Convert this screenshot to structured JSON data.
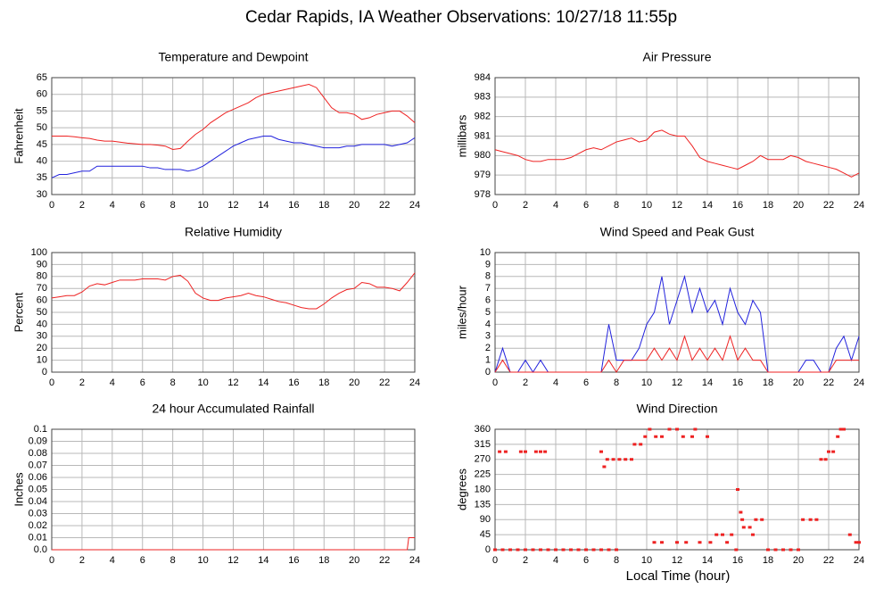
{
  "title": "Cedar Rapids, IA Weather Observations: 10/27/18 11:55p",
  "xlabel": "Local Time (hour)",
  "chart_data": [
    {
      "type": "line",
      "title": "Temperature and Dewpoint",
      "ylabel": "Fahrenheit",
      "grid": true,
      "xlim": [
        0,
        24
      ],
      "xticks": [
        0,
        2,
        4,
        6,
        8,
        10,
        12,
        14,
        16,
        18,
        20,
        22,
        24
      ],
      "ylim": [
        30,
        65
      ],
      "yticks": [
        30,
        35,
        40,
        45,
        50,
        55,
        60,
        65
      ],
      "x": [
        0,
        0.5,
        1,
        1.5,
        2,
        2.5,
        3,
        3.5,
        4,
        4.5,
        5,
        5.5,
        6,
        6.5,
        7,
        7.5,
        8,
        8.5,
        9,
        9.5,
        10,
        10.5,
        11,
        11.5,
        12,
        12.5,
        13,
        13.5,
        14,
        14.5,
        15,
        15.5,
        16,
        16.5,
        17,
        17.5,
        18,
        18.5,
        19,
        19.5,
        20,
        20.5,
        21,
        21.5,
        22,
        22.5,
        23,
        23.5,
        24
      ],
      "series": [
        {
          "color": "#ee2222",
          "values": [
            47.5,
            47.5,
            47.5,
            47.3,
            47,
            46.8,
            46.3,
            46,
            46,
            45.7,
            45.4,
            45.2,
            45,
            45,
            44.8,
            44.5,
            43.5,
            43.8,
            46,
            48,
            49.5,
            51.5,
            53,
            54.5,
            55.5,
            56.5,
            57.5,
            59,
            60,
            60.5,
            61,
            61.5,
            62,
            62.5,
            63,
            62,
            59,
            56,
            54.5,
            54.5,
            54,
            52.5,
            53,
            54,
            54.5,
            55,
            55,
            53.5,
            51.5
          ]
        },
        {
          "color": "#2222dd",
          "values": [
            35,
            36,
            36,
            36.5,
            37,
            37,
            38.5,
            38.5,
            38.5,
            38.5,
            38.5,
            38.5,
            38.5,
            38,
            38,
            37.5,
            37.5,
            37.5,
            37,
            37.5,
            38.5,
            40,
            41.5,
            43,
            44.5,
            45.5,
            46.5,
            47,
            47.5,
            47.5,
            46.5,
            46,
            45.5,
            45.5,
            45,
            44.5,
            44,
            44,
            44,
            44.5,
            44.5,
            45,
            45,
            45,
            45,
            44.5,
            45,
            45.5,
            47
          ]
        }
      ]
    },
    {
      "type": "line",
      "title": "Air Pressure",
      "ylabel": "millibars",
      "grid": true,
      "xlim": [
        0,
        24
      ],
      "xticks": [
        0,
        2,
        4,
        6,
        8,
        10,
        12,
        14,
        16,
        18,
        20,
        22,
        24
      ],
      "ylim": [
        978,
        984
      ],
      "yticks": [
        978,
        979,
        980,
        981,
        982,
        983,
        984
      ],
      "x": [
        0,
        0.5,
        1,
        1.5,
        2,
        2.5,
        3,
        3.5,
        4,
        4.5,
        5,
        5.5,
        6,
        6.5,
        7,
        7.5,
        8,
        8.5,
        9,
        9.5,
        10,
        10.5,
        11,
        11.5,
        12,
        12.5,
        13,
        13.5,
        14,
        14.5,
        15,
        15.5,
        16,
        16.5,
        17,
        17.5,
        18,
        18.5,
        19,
        19.5,
        20,
        20.5,
        21,
        21.5,
        22,
        22.5,
        23,
        23.5,
        24
      ],
      "series": [
        {
          "color": "#ee2222",
          "values": [
            980.3,
            980.2,
            980.1,
            980.0,
            979.8,
            979.7,
            979.7,
            979.8,
            979.8,
            979.8,
            979.9,
            980.1,
            980.3,
            980.4,
            980.3,
            980.5,
            980.7,
            980.8,
            980.9,
            980.7,
            980.8,
            981.2,
            981.3,
            981.1,
            981.0,
            981.0,
            980.5,
            979.9,
            979.7,
            979.6,
            979.5,
            979.4,
            979.3,
            979.5,
            979.7,
            980.0,
            979.8,
            979.8,
            979.8,
            980.0,
            979.9,
            979.7,
            979.6,
            979.5,
            979.4,
            979.3,
            979.1,
            978.9,
            979.1
          ]
        }
      ]
    },
    {
      "type": "line",
      "title": "Relative Humidity",
      "ylabel": "Percent",
      "grid": true,
      "xlim": [
        0,
        24
      ],
      "xticks": [
        0,
        2,
        4,
        6,
        8,
        10,
        12,
        14,
        16,
        18,
        20,
        22,
        24
      ],
      "ylim": [
        0,
        100
      ],
      "yticks": [
        0,
        10,
        20,
        30,
        40,
        50,
        60,
        70,
        80,
        90,
        100
      ],
      "x": [
        0,
        0.5,
        1,
        1.5,
        2,
        2.5,
        3,
        3.5,
        4,
        4.5,
        5,
        5.5,
        6,
        6.5,
        7,
        7.5,
        8,
        8.5,
        9,
        9.5,
        10,
        10.5,
        11,
        11.5,
        12,
        12.5,
        13,
        13.5,
        14,
        14.5,
        15,
        15.5,
        16,
        16.5,
        17,
        17.5,
        18,
        18.5,
        19,
        19.5,
        20,
        20.5,
        21,
        21.5,
        22,
        22.5,
        23,
        23.5,
        24
      ],
      "series": [
        {
          "color": "#ee2222",
          "values": [
            62,
            63,
            64,
            64,
            67,
            72,
            74,
            73,
            75,
            77,
            77,
            77,
            78,
            78,
            78,
            77,
            80,
            81,
            76,
            66,
            62,
            60,
            60,
            62,
            63,
            64,
            66,
            64,
            63,
            61,
            59,
            58,
            56,
            54,
            53,
            53,
            57,
            62,
            66,
            69,
            70,
            75,
            74,
            71,
            71,
            70,
            68,
            75,
            83
          ]
        }
      ]
    },
    {
      "type": "line",
      "title": "Wind Speed and Peak Gust",
      "ylabel": "miles/hour",
      "grid": true,
      "xlim": [
        0,
        24
      ],
      "xticks": [
        0,
        2,
        4,
        6,
        8,
        10,
        12,
        14,
        16,
        18,
        20,
        22,
        24
      ],
      "ylim": [
        0,
        10
      ],
      "yticks": [
        0,
        1,
        2,
        3,
        4,
        5,
        6,
        7,
        8,
        9,
        10
      ],
      "x": [
        0,
        0.5,
        1,
        1.5,
        2,
        2.5,
        3,
        3.5,
        4,
        4.5,
        5,
        5.5,
        6,
        6.5,
        7,
        7.5,
        8,
        8.5,
        9,
        9.5,
        10,
        10.5,
        11,
        11.5,
        12,
        12.5,
        13,
        13.5,
        14,
        14.5,
        15,
        15.5,
        16,
        16.5,
        17,
        17.5,
        18,
        18.5,
        19,
        19.5,
        20,
        20.5,
        21,
        21.5,
        22,
        22.5,
        23,
        23.5,
        24
      ],
      "series": [
        {
          "color": "#2222dd",
          "values": [
            0,
            2,
            0,
            0,
            1,
            0,
            1,
            0,
            0,
            0,
            0,
            0,
            0,
            0,
            0,
            4,
            1,
            1,
            1,
            2,
            4,
            5,
            8,
            4,
            6,
            8,
            5,
            7,
            5,
            6,
            4,
            7,
            5,
            4,
            6,
            5,
            0,
            0,
            0,
            0,
            0,
            1,
            1,
            0,
            0,
            2,
            3,
            1,
            3
          ]
        },
        {
          "color": "#ee2222",
          "values": [
            0,
            1,
            0,
            0,
            0,
            0,
            0,
            0,
            0,
            0,
            0,
            0,
            0,
            0,
            0,
            1,
            0,
            1,
            1,
            1,
            1,
            2,
            1,
            2,
            1,
            3,
            1,
            2,
            1,
            2,
            1,
            3,
            1,
            2,
            1,
            1,
            0,
            0,
            0,
            0,
            0,
            0,
            0,
            0,
            0,
            1,
            1,
            1,
            1
          ]
        }
      ]
    },
    {
      "type": "line",
      "title": "24 hour Accumulated Rainfall",
      "ylabel": "Inches",
      "grid": true,
      "xlim": [
        0,
        24
      ],
      "xticks": [
        0,
        2,
        4,
        6,
        8,
        10,
        12,
        14,
        16,
        18,
        20,
        22,
        24
      ],
      "ylim": [
        0,
        0.1
      ],
      "yticks": [
        {
          "value": 0,
          "label": "0.0"
        },
        0.01,
        0.02,
        0.03,
        0.04,
        0.05,
        0.06,
        0.07,
        0.08,
        0.09,
        0.1
      ],
      "x": [
        0,
        23.5,
        23.6,
        24
      ],
      "series": [
        {
          "color": "#ee2222",
          "values": [
            0,
            0,
            0.01,
            0.01
          ]
        }
      ]
    },
    {
      "type": "scatter",
      "title": "Wind Direction",
      "ylabel": "degrees",
      "grid": true,
      "xlim": [
        0,
        24
      ],
      "xticks": [
        0,
        2,
        4,
        6,
        8,
        10,
        12,
        14,
        16,
        18,
        20,
        22,
        24
      ],
      "ylim": [
        0,
        360
      ],
      "yticks": [
        0,
        45,
        90,
        135,
        180,
        225,
        270,
        315,
        360
      ],
      "x": [
        0,
        0.3,
        0.5,
        0.7,
        1,
        1.5,
        1.7,
        2,
        2,
        2.5,
        2.7,
        3,
        3,
        3.3,
        3.5,
        4,
        4.5,
        5,
        5.5,
        6,
        6.5,
        7,
        7,
        7.2,
        7.4,
        7.5,
        7.8,
        8,
        8.2,
        8.6,
        9,
        9.2,
        9.6,
        9.9,
        10.2,
        10.5,
        10.6,
        11,
        11,
        11.5,
        12,
        12,
        12.4,
        12.6,
        13,
        13.2,
        13.5,
        14,
        14.2,
        14.6,
        15,
        15.3,
        15.6,
        15.9,
        16,
        16.2,
        16.3,
        16.4,
        16.8,
        17,
        17.2,
        17.6,
        18,
        18.5,
        19,
        19.5,
        20,
        20.3,
        20.8,
        21.2,
        21.5,
        21.8,
        22,
        22.3,
        22.6,
        22.8,
        23,
        23.4,
        23.8,
        24
      ],
      "series": [
        {
          "color": "#ee2222",
          "values": [
            0,
            293,
            0,
            293,
            0,
            0,
            293,
            293,
            0,
            0,
            293,
            0,
            293,
            293,
            0,
            0,
            0,
            0,
            0,
            0,
            0,
            0,
            293,
            248,
            270,
            0,
            270,
            0,
            270,
            270,
            270,
            315,
            315,
            338,
            360,
            22,
            338,
            338,
            22,
            360,
            360,
            22,
            338,
            22,
            338,
            360,
            22,
            338,
            22,
            45,
            45,
            22,
            45,
            0,
            180,
            112,
            90,
            67,
            67,
            45,
            90,
            90,
            0,
            0,
            0,
            0,
            0,
            90,
            90,
            90,
            270,
            270,
            293,
            293,
            338,
            360,
            360,
            45,
            22,
            22
          ]
        }
      ]
    }
  ]
}
